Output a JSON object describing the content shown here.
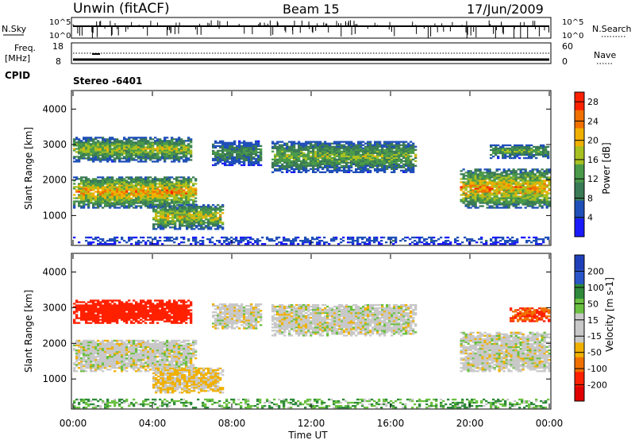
{
  "header": {
    "station": "Unwin (fitACF)",
    "beam": "Beam 15",
    "date": "17/Jun/2009"
  },
  "top_panel": {
    "left_label": "N.Sky",
    "right_label": "N.Search",
    "left_ticks": [
      "10^5",
      "10^0"
    ],
    "right_ticks": [
      "10^5",
      "10^0"
    ]
  },
  "freq_panel": {
    "left_label_1": "Freq.",
    "left_label_2": "[MHz]",
    "left_ticks": [
      "18",
      "8"
    ],
    "right_ticks": [
      "60",
      "0"
    ],
    "right_label": "Nave",
    "cpid_label": "CPID",
    "cpid_value": "Stereo -6401"
  },
  "colors": {
    "power_scale": [
      "#1a1aff",
      "#1f4fb8",
      "#3a7a55",
      "#4a9a4a",
      "#a8c020",
      "#f0b000",
      "#f07000",
      "#ff2000"
    ],
    "velocity_scale": [
      "#1f3fb8",
      "#2a55c8",
      "#2e8a3a",
      "#6ac040",
      "#c8c8c8",
      "#c8c8c8",
      "#f0b000",
      "#f07000",
      "#ff2000",
      "#e00000"
    ]
  },
  "chart_data": [
    {
      "type": "heatmap",
      "title": "",
      "quantity": "Power",
      "ylabel": "Slant Range [km]",
      "xlabel": "",
      "xlim": [
        "00:00",
        "24:00"
      ],
      "ylim": [
        180,
        4500
      ],
      "y_ticks": [
        "1000",
        "2000",
        "3000",
        "4000"
      ],
      "colorbar_label": "Power [dB]",
      "colorbar_ticks": [
        "4",
        "8",
        "12",
        "16",
        "20",
        "24",
        "28"
      ],
      "colorbar_range": [
        0,
        30
      ],
      "features": [
        {
          "t0": 0.0,
          "t1": 6.0,
          "r0": 2500,
          "r1": 3200,
          "peak": 20
        },
        {
          "t0": 0.0,
          "t1": 6.2,
          "r0": 1200,
          "r1": 2100,
          "peak": 26
        },
        {
          "t0": 4.0,
          "t1": 7.5,
          "r0": 600,
          "r1": 1300,
          "peak": 22
        },
        {
          "t0": 7.0,
          "t1": 9.5,
          "r0": 2400,
          "r1": 3100,
          "peak": 14
        },
        {
          "t0": 10.0,
          "t1": 17.2,
          "r0": 2200,
          "r1": 3100,
          "peak": 18
        },
        {
          "t0": 19.5,
          "t1": 24.0,
          "r0": 1200,
          "r1": 2300,
          "peak": 26
        },
        {
          "t0": 21.0,
          "t1": 24.0,
          "r0": 2600,
          "r1": 3000,
          "peak": 16
        },
        {
          "t0": 0.0,
          "t1": 24.0,
          "r0": 180,
          "r1": 400,
          "peak": 8
        }
      ]
    },
    {
      "type": "heatmap",
      "title": "",
      "quantity": "Velocity",
      "ylabel": "Slant Range [km]",
      "xlabel": "Time UT",
      "xlim": [
        "00:00",
        "24:00"
      ],
      "ylim": [
        180,
        4500
      ],
      "x_ticks": [
        "00:00",
        "04:00",
        "08:00",
        "12:00",
        "16:00",
        "20:00",
        "00:00"
      ],
      "y_ticks": [
        "1000",
        "2000",
        "3000",
        "4000"
      ],
      "colorbar_label": "Velocity [m s-1]",
      "colorbar_ticks": [
        "200",
        "100",
        "50",
        "15",
        "-15",
        "-50",
        "-100",
        "-200"
      ],
      "colorbar_range": [
        -250,
        250
      ],
      "features": [
        {
          "t0": 0.0,
          "t1": 6.0,
          "r0": 2550,
          "r1": 3200,
          "velocity": -180
        },
        {
          "t0": 0.0,
          "t1": 6.2,
          "r0": 1200,
          "r1": 2100,
          "velocity": 0
        },
        {
          "t0": 4.0,
          "t1": 7.5,
          "r0": 600,
          "r1": 1300,
          "velocity": -20
        },
        {
          "t0": 7.0,
          "t1": 9.5,
          "r0": 2400,
          "r1": 3100,
          "velocity": 0
        },
        {
          "t0": 10.0,
          "t1": 17.2,
          "r0": 2200,
          "r1": 3100,
          "velocity": 0
        },
        {
          "t0": 19.5,
          "t1": 24.0,
          "r0": 1200,
          "r1": 2300,
          "velocity": 0
        },
        {
          "t0": 22.0,
          "t1": 24.0,
          "r0": 2600,
          "r1": 3000,
          "velocity": -150
        },
        {
          "t0": 0.0,
          "t1": 24.0,
          "r0": 180,
          "r1": 450,
          "velocity": 30
        }
      ]
    }
  ]
}
